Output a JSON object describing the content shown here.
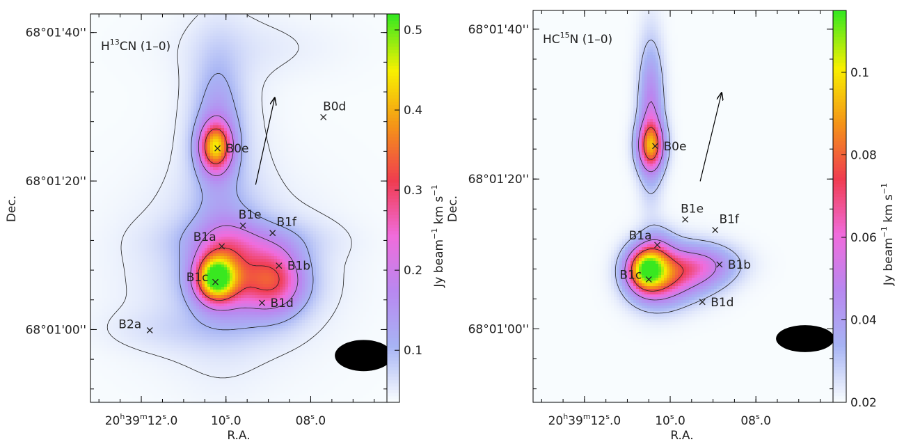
{
  "colorscale": [
    "#f8fcfe",
    "#a7b4f4",
    "#b888f0",
    "#f06cdc",
    "#f03c50",
    "#f49418",
    "#f8f000",
    "#38e820"
  ],
  "chart_data": [
    {
      "type": "heatmap",
      "panel": "left",
      "title_main": "H",
      "title_sup": "13",
      "title_rest": "CN (1–0)",
      "xlabel": "R.A.",
      "ylabel": "Dec.",
      "x_ticks": [
        {
          "h": "20",
          "m": "39",
          "s": "12",
          "frac": ".0",
          "ra_s": 12.0
        },
        {
          "label": "10.0",
          "ra_s": 10.0
        },
        {
          "label": "08.0",
          "ra_s": 8.0
        }
      ],
      "y_ticks": [
        {
          "label": "68°01'40''",
          "dec_s": 100
        },
        {
          "label": "68°01'20''",
          "dec_s": 80
        },
        {
          "label": "68°01'00''",
          "dec_s": 60
        }
      ],
      "x_range": [
        13.2,
        6.2
      ],
      "y_range": [
        50.2,
        102.5
      ],
      "colorbar": {
        "label": "Jy beam−1 km s−1",
        "label_parts": [
          "Jy beam",
          "−1",
          " km s",
          "−1"
        ],
        "min": 0.035,
        "max": 0.52,
        "ticks": [
          {
            "label": "0.1",
            "v": 0.1
          },
          {
            "label": "0.2",
            "v": 0.2
          },
          {
            "label": "0.3",
            "v": 0.3
          },
          {
            "label": "0.4",
            "v": 0.4
          },
          {
            "label": "0.5",
            "v": 0.5
          }
        ]
      },
      "sources": [
        {
          "name": "B0d",
          "ra_s": 7.7,
          "dec_s": 88.6
        },
        {
          "name": "B0e",
          "ra_s": 10.2,
          "dec_s": 84.4
        },
        {
          "name": "B1e",
          "ra_s": 9.6,
          "dec_s": 74.0
        },
        {
          "name": "B1f",
          "ra_s": 8.9,
          "dec_s": 73.0
        },
        {
          "name": "B1a",
          "ra_s": 10.1,
          "dec_s": 71.2
        },
        {
          "name": "B1b",
          "ra_s": 8.75,
          "dec_s": 68.6
        },
        {
          "name": "B1c",
          "ra_s": 10.25,
          "dec_s": 66.4
        },
        {
          "name": "B1d",
          "ra_s": 9.15,
          "dec_s": 63.6
        },
        {
          "name": "B2a",
          "ra_s": 11.8,
          "dec_s": 59.9
        }
      ],
      "outflow_arrow": {
        "from": [
          9.3,
          79.5
        ],
        "to": [
          8.85,
          91.2
        ]
      },
      "emission": [
        {
          "ra_s": 10.25,
          "dec_s": 66.9,
          "amp": 0.36,
          "sra": 0.32,
          "sdec": 2.1
        },
        {
          "ra_s": 9.95,
          "dec_s": 68.8,
          "amp": 0.14,
          "sra": 0.55,
          "sdec": 4.2
        },
        {
          "ra_s": 8.85,
          "dec_s": 66.8,
          "amp": 0.2,
          "sra": 0.5,
          "sdec": 3.2
        },
        {
          "ra_s": 9.4,
          "dec_s": 65.8,
          "amp": 0.06,
          "sra": 0.9,
          "sdec": 3.0
        },
        {
          "ra_s": 10.25,
          "dec_s": 84.6,
          "amp": 0.3,
          "sra": 0.26,
          "sdec": 2.2
        },
        {
          "ra_s": 10.2,
          "dec_s": 87.0,
          "amp": 0.09,
          "sra": 0.38,
          "sdec": 6.5
        },
        {
          "ra_s": 9.5,
          "dec_s": 72.0,
          "amp": 0.05,
          "sra": 1.2,
          "sdec": 2.0
        },
        {
          "ra_s": 10.0,
          "dec_s": 68.0,
          "amp": 0.035,
          "sra": 1.6,
          "sdec": 8.0
        },
        {
          "ra_s": 10.1,
          "dec_s": 80.0,
          "amp": 0.03,
          "sra": 0.7,
          "sdec": 14.0
        },
        {
          "ra_s": 11.1,
          "dec_s": 60.0,
          "amp": 0.02,
          "sra": 1.2,
          "sdec": 2.0
        },
        {
          "ra_s": 9.3,
          "dec_s": 98.0,
          "amp": 0.015,
          "sra": 1.4,
          "sdec": 3.0
        }
      ],
      "beam": {
        "ra_s": 6.75,
        "dec_s": 56.5,
        "w_s": 0.68,
        "h_s": 4.2
      }
    },
    {
      "type": "heatmap",
      "panel": "right",
      "title_main": "HC",
      "title_sup": "15",
      "title_rest": "N (1–0)",
      "xlabel": "R.A.",
      "ylabel": "Dec.",
      "x_ticks": [
        {
          "h": "20",
          "m": "39",
          "s": "12",
          "frac": ".0",
          "ra_s": 12.0
        },
        {
          "label": "10.0",
          "ra_s": 10.0
        },
        {
          "label": "08.0",
          "ra_s": 8.0
        }
      ],
      "y_ticks": [
        {
          "label": "68°01'40''",
          "dec_s": 100
        },
        {
          "label": "68°01'20''",
          "dec_s": 80
        },
        {
          "label": "68°01'00''",
          "dec_s": 60
        }
      ],
      "x_range": [
        13.2,
        6.2
      ],
      "y_range": [
        50.2,
        102.5
      ],
      "colorbar": {
        "label": "Jy beam−1 km s−1",
        "label_parts": [
          "Jy beam",
          "−1",
          " km s",
          "−1"
        ],
        "min": 0.02,
        "max": 0.115,
        "ticks": [
          {
            "label": "0.02",
            "v": 0.02
          },
          {
            "label": "0.04",
            "v": 0.04
          },
          {
            "label": "0.06",
            "v": 0.06
          },
          {
            "label": "0.08",
            "v": 0.08
          },
          {
            "label": "0.1",
            "v": 0.1
          }
        ]
      },
      "sources": [
        {
          "name": "B0e",
          "ra_s": 10.35,
          "dec_s": 84.4
        },
        {
          "name": "B1e",
          "ra_s": 9.65,
          "dec_s": 74.6
        },
        {
          "name": "B1f",
          "ra_s": 8.95,
          "dec_s": 73.2
        },
        {
          "name": "B1a",
          "ra_s": 10.3,
          "dec_s": 71.2
        },
        {
          "name": "B1b",
          "ra_s": 8.85,
          "dec_s": 68.6
        },
        {
          "name": "B1c",
          "ra_s": 10.5,
          "dec_s": 66.6
        },
        {
          "name": "B1d",
          "ra_s": 9.25,
          "dec_s": 63.6
        },
        {
          "name": "",
          "ra_s": 0,
          "dec_s": 0
        }
      ],
      "outflow_arrow": {
        "from": [
          9.3,
          79.7
        ],
        "to": [
          8.8,
          91.5
        ]
      },
      "emission": [
        {
          "ra_s": 10.6,
          "dec_s": 68.0,
          "amp": 0.06,
          "sra": 0.3,
          "sdec": 2.0
        },
        {
          "ra_s": 10.3,
          "dec_s": 67.0,
          "amp": 0.045,
          "sra": 0.45,
          "sdec": 2.6
        },
        {
          "ra_s": 9.6,
          "dec_s": 67.6,
          "amp": 0.028,
          "sra": 0.55,
          "sdec": 2.4
        },
        {
          "ra_s": 9.1,
          "dec_s": 68.6,
          "amp": 0.018,
          "sra": 0.55,
          "sdec": 1.8
        },
        {
          "ra_s": 10.3,
          "dec_s": 70.8,
          "amp": 0.015,
          "sra": 0.28,
          "sdec": 2.0
        },
        {
          "ra_s": 10.45,
          "dec_s": 84.4,
          "amp": 0.05,
          "sra": 0.22,
          "sdec": 2.2
        },
        {
          "ra_s": 10.45,
          "dec_s": 88.5,
          "amp": 0.03,
          "sra": 0.2,
          "sdec": 6.5
        }
      ],
      "beam": {
        "ra_s": 6.85,
        "dec_s": 58.7,
        "w_s": 0.68,
        "h_s": 3.6
      }
    }
  ]
}
